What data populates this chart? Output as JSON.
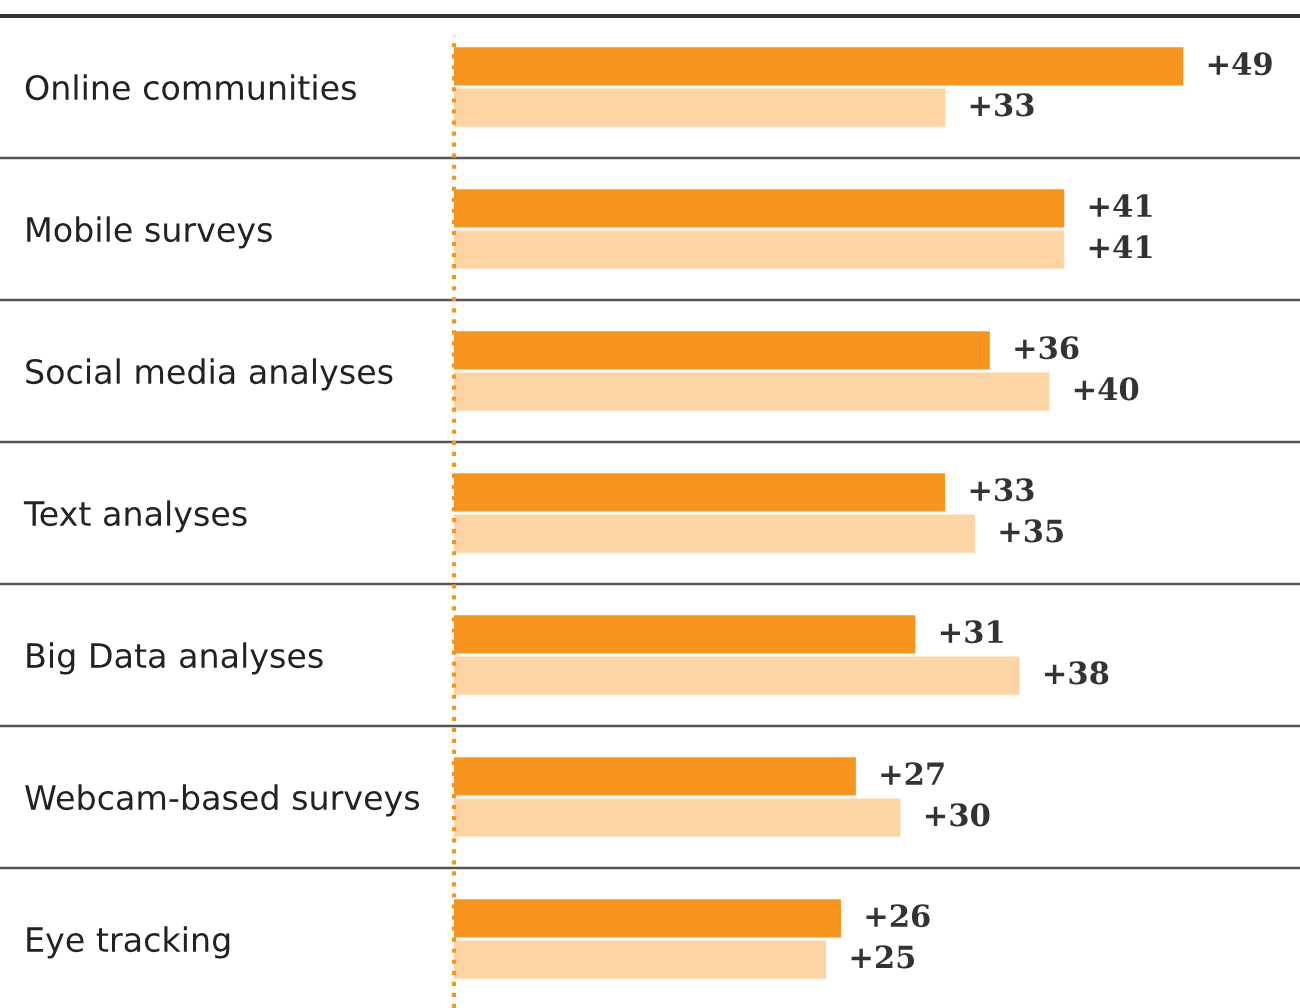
{
  "chart_data": {
    "type": "bar",
    "orientation": "horizontal",
    "categories": [
      "Online communities",
      "Mobile surveys",
      "Social media analyses",
      "Text analyses",
      "Big Data analyses",
      "Webcam-based surveys",
      "Eye tracking"
    ],
    "series": [
      {
        "color": "#f7941d",
        "values": [
          49,
          41,
          36,
          33,
          31,
          27,
          26
        ],
        "value_labels": [
          "+49",
          "+41",
          "+36",
          "+33",
          "+31",
          "+27",
          "+26"
        ]
      },
      {
        "color": "#fdd5a5",
        "values": [
          33,
          41,
          40,
          35,
          38,
          30,
          25
        ],
        "value_labels": [
          "+33",
          "+41",
          "+40",
          "+35",
          "+38",
          "+30",
          "+25"
        ]
      }
    ],
    "ref_lines": [
      {
        "axis": "x",
        "value": 0,
        "color": "#f7941d",
        "line_style": "dotted"
      }
    ],
    "grid": "y",
    "tick_labels": "y"
  }
}
